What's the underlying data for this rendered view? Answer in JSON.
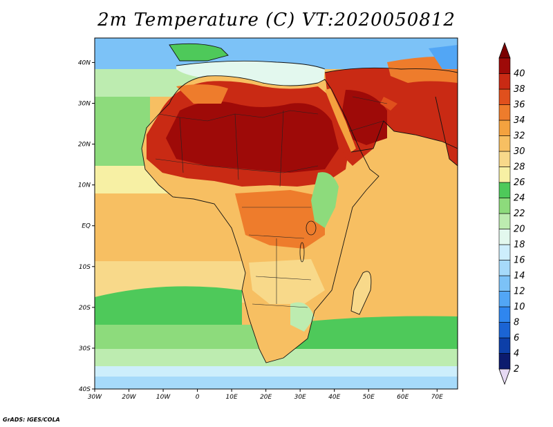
{
  "title": "2m Temperature (C) VT:2020050812",
  "credit": "GrADS: IGES/COLA",
  "map": {
    "region": "Africa and Arabian Peninsula",
    "field": "2m Temperature",
    "units": "C",
    "valid_time": "2020050812",
    "lon_range": [
      -30,
      76
    ],
    "lat_range": [
      -40,
      46
    ],
    "lon_ticks": [
      "30W",
      "20W",
      "10W",
      "0",
      "10E",
      "20E",
      "30E",
      "40E",
      "50E",
      "60E",
      "70E"
    ],
    "lat_ticks": [
      "40S",
      "30S",
      "20S",
      "10S",
      "EQ",
      "10N",
      "20N",
      "30N",
      "40N"
    ]
  },
  "colorbar": {
    "levels": [
      "2",
      "4",
      "6",
      "8",
      "10",
      "12",
      "14",
      "16",
      "18",
      "20",
      "22",
      "24",
      "26",
      "28",
      "30",
      "32",
      "34",
      "36",
      "38",
      "40"
    ],
    "colors": [
      "#0c1b6e",
      "#0d3fa8",
      "#1b64d4",
      "#2f86ef",
      "#52a6f5",
      "#7cc2f7",
      "#a6dafa",
      "#cdeefc",
      "#e3f8ee",
      "#bdecb0",
      "#8ddb7c",
      "#4ec95a",
      "#f7f0a4",
      "#f8d98a",
      "#f7bf62",
      "#f4a23f",
      "#ee7c2c",
      "#e0501d",
      "#c92a14",
      "#9e0a08"
    ],
    "below_color": "#e6d9f3",
    "above_color": "#7b0000"
  }
}
